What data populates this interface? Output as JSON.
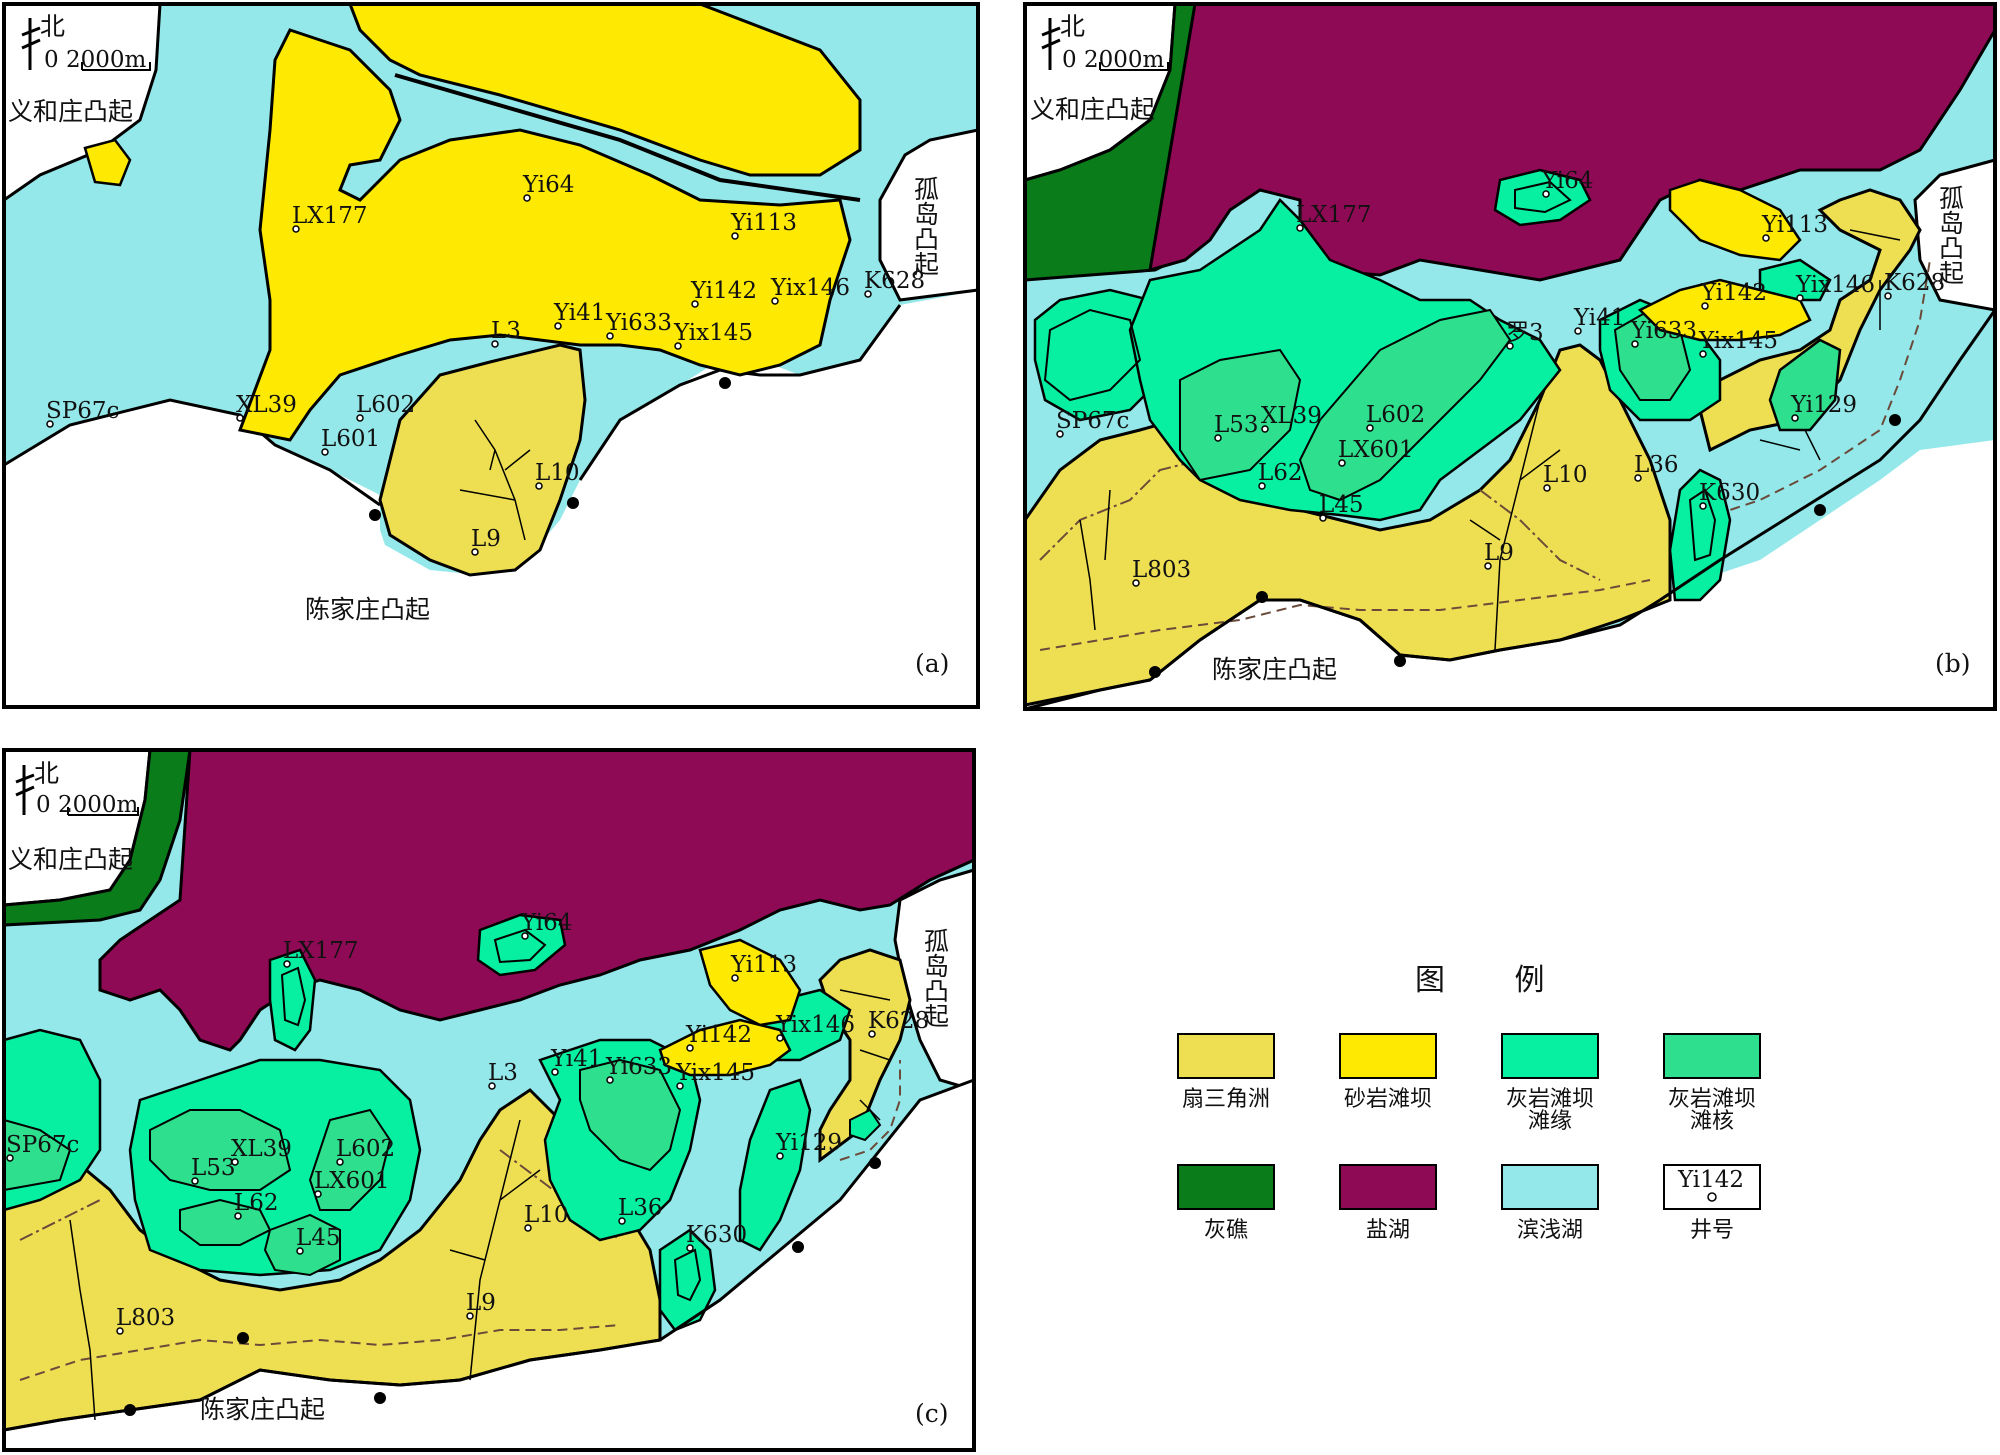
{
  "colors": {
    "fan_delta": "#eedf52",
    "sandstone_bar": "#fde902",
    "limestone_bar_margin": "#07f0a2",
    "limestone_bar_core": "#2edf8d",
    "reef": "#0b7c1a",
    "salt_lake": "#8f0a55",
    "shore_shallow_lake": "#94e8ea",
    "upland": "#ffffff"
  },
  "compass": {
    "north_label": "北",
    "scale_label": "0  2000m"
  },
  "uplifts": {
    "yihezhuang": "义和庄凸起",
    "chenjiazhuang": "陈家庄凸起",
    "gudao": "孤岛凸起"
  },
  "panels": [
    {
      "tag": "(a)",
      "wells": [
        "Yi64",
        "LX177",
        "Yi113",
        "Yi142",
        "Yix146",
        "K628",
        "Yi41",
        "Yi633",
        "Yix145",
        "L3",
        "SP67c",
        "XL39",
        "L602",
        "L601",
        "L10",
        "L9"
      ]
    },
    {
      "tag": "(b)",
      "wells": [
        "Yi64",
        "LX177",
        "Yi113",
        "Yi142",
        "Yix146",
        "K628",
        "Yi41",
        "Yi633",
        "Yix145",
        "罗3",
        "SP67c",
        "L53",
        "XL39",
        "L602",
        "LX601",
        "L62",
        "L45",
        "L10",
        "L36",
        "K630",
        "Yi129",
        "L9",
        "L803"
      ]
    },
    {
      "tag": "(c)",
      "wells": [
        "Yi64",
        "LX177",
        "Yi113",
        "Yi142",
        "Yix146",
        "K628",
        "Yi41",
        "Yi633",
        "Yix145",
        "L3",
        "SP67c",
        "L53",
        "XL39",
        "L602",
        "LX601",
        "L62",
        "L45",
        "L10",
        "L36",
        "K630",
        "Yi129",
        "L9",
        "L803"
      ]
    }
  ],
  "legend": {
    "title": "图 例",
    "items": [
      {
        "label": "扇三角洲",
        "color_key": "fan_delta"
      },
      {
        "label": "砂岩滩坝",
        "color_key": "sandstone_bar"
      },
      {
        "label": "灰岩滩坝 滩缘",
        "color_key": "limestone_bar_margin"
      },
      {
        "label": "灰岩滩坝 滩核",
        "color_key": "limestone_bar_core"
      },
      {
        "label": "灰礁",
        "color_key": "reef"
      },
      {
        "label": "盐湖",
        "color_key": "salt_lake"
      },
      {
        "label": "滨浅湖",
        "color_key": "shore_shallow_lake"
      },
      {
        "label": "井号",
        "sample": "Yi142"
      }
    ]
  }
}
